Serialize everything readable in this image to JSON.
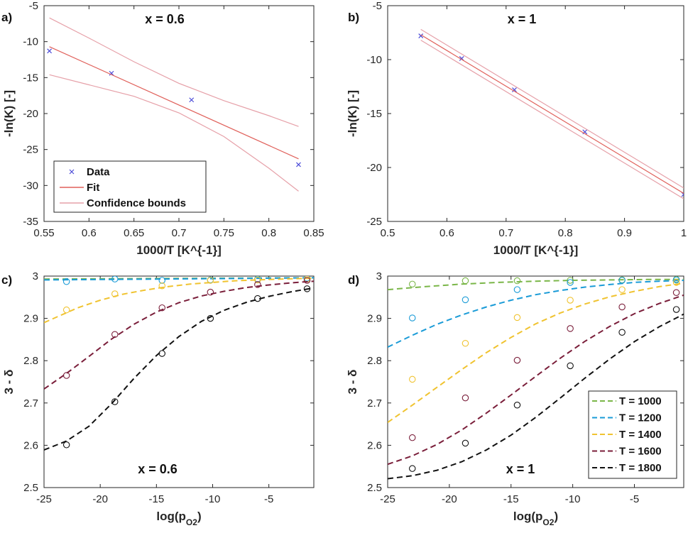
{
  "chart_data": [
    {
      "panel": "a)",
      "type": "line",
      "annotation": "x = 0.6",
      "xlabel": "1000/T [K^{-1}]",
      "ylabel": "-ln(K) [-]",
      "xlim": [
        0.55,
        0.85
      ],
      "ylim": [
        -35,
        -5
      ],
      "xticks": [
        0.55,
        0.6,
        0.65,
        0.7,
        0.75,
        0.8,
        0.85
      ],
      "xtick_labels": [
        "0.55",
        "0.6",
        "0.65",
        "0.7",
        "0.75",
        "0.8",
        "0.85"
      ],
      "yticks": [
        -35,
        -30,
        -25,
        -20,
        -15,
        -10,
        -5
      ],
      "ytick_labels": [
        "-35",
        "-30",
        "-25",
        "-20",
        "-15",
        "-10",
        "-5"
      ],
      "legend": [
        "Data",
        "Fit",
        "Confidence bounds"
      ],
      "series": [
        {
          "name": "Data",
          "kind": "marker",
          "color": "#4b4bd8",
          "x": [
            0.556,
            0.625,
            0.714,
            0.833
          ],
          "y": [
            -11.3,
            -14.4,
            -18.1,
            -27.1
          ]
        },
        {
          "name": "Fit",
          "kind": "line",
          "color": "#e0605a",
          "x": [
            0.556,
            0.833
          ],
          "y": [
            -10.7,
            -26.3
          ]
        },
        {
          "name": "Confidence bounds",
          "kind": "line",
          "color": "#e6a0a8",
          "x": [
            0.556,
            0.6,
            0.65,
            0.7,
            0.75,
            0.8,
            0.833
          ],
          "y": [
            -6.7,
            -9.5,
            -12.8,
            -15.8,
            -18.2,
            -20.3,
            -21.8
          ]
        },
        {
          "name": "Confidence bounds",
          "kind": "line",
          "color": "#e6a0a8",
          "x": [
            0.556,
            0.6,
            0.65,
            0.7,
            0.75,
            0.8,
            0.833
          ],
          "y": [
            -14.6,
            -16.0,
            -17.6,
            -19.9,
            -23.2,
            -27.6,
            -30.8
          ]
        }
      ]
    },
    {
      "panel": "b)",
      "type": "line",
      "annotation": "x = 1",
      "xlabel": "1000/T [K^{-1}]",
      "ylabel": "-ln(K) [-]",
      "xlim": [
        0.5,
        1
      ],
      "ylim": [
        -25,
        -5
      ],
      "xticks": [
        0.5,
        0.6,
        0.7,
        0.8,
        0.9,
        1
      ],
      "xtick_labels": [
        "0.5",
        "0.6",
        "0.7",
        "0.8",
        "0.9",
        "1"
      ],
      "yticks": [
        -25,
        -20,
        -15,
        -10,
        -5
      ],
      "ytick_labels": [
        "-25",
        "-20",
        "-15",
        "-10",
        "-5"
      ],
      "series": [
        {
          "name": "Data",
          "kind": "marker",
          "color": "#4b4bd8",
          "x": [
            0.556,
            0.625,
            0.714,
            0.833,
            1.0
          ],
          "y": [
            -7.8,
            -9.9,
            -12.8,
            -16.7,
            -22.5
          ]
        },
        {
          "name": "Fit",
          "kind": "line",
          "color": "#e0605a",
          "x": [
            0.556,
            1.0
          ],
          "y": [
            -7.7,
            -22.4
          ]
        },
        {
          "name": "Confidence bounds",
          "kind": "line",
          "color": "#e6a0a8",
          "x": [
            0.556,
            1.0
          ],
          "y": [
            -7.2,
            -21.9
          ]
        },
        {
          "name": "Confidence bounds",
          "kind": "line",
          "color": "#e6a0a8",
          "x": [
            0.556,
            1.0
          ],
          "y": [
            -8.2,
            -22.9
          ]
        }
      ]
    },
    {
      "panel": "c)",
      "type": "line",
      "annotation": "x = 0.6",
      "xlabel": "log(p",
      "xlabel_sub": "O2",
      "xlabel_end": ")",
      "ylabel": "3 - δ",
      "xlim": [
        -25,
        -1
      ],
      "ylim": [
        2.5,
        3.0
      ],
      "xticks": [
        -25,
        -20,
        -15,
        -10,
        -5
      ],
      "xtick_labels": [
        "-25",
        "-20",
        "-15",
        "-10",
        "-5"
      ],
      "yticks": [
        2.5,
        2.6,
        2.7,
        2.8,
        2.9,
        3.0
      ],
      "ytick_labels": [
        "2.5",
        "2.6",
        "2.7",
        "2.8",
        "2.9",
        "3"
      ],
      "series": [
        {
          "name": "T = 1000",
          "color": "#7ab648",
          "x": [
            -25,
            -1
          ],
          "y": [
            2.993,
            2.996
          ],
          "points_x": [],
          "points_y": []
        },
        {
          "name": "T = 1200",
          "color": "#1a9bd7",
          "x": [
            -25,
            -20,
            -15,
            -10,
            -5,
            -1
          ],
          "y": [
            2.991,
            2.992,
            2.993,
            2.994,
            2.995,
            2.996
          ],
          "points_x": [
            -23,
            -18.7,
            -14.5,
            -10.2,
            -6,
            -1.6
          ],
          "points_y": [
            2.987,
            2.993,
            2.99,
            2.991,
            2.993,
            2.995
          ]
        },
        {
          "name": "T = 1400",
          "color": "#f0c330",
          "x": [
            -25,
            -22,
            -20,
            -18,
            -16,
            -14,
            -12,
            -10,
            -8,
            -6,
            -4,
            -1
          ],
          "y": [
            2.89,
            2.925,
            2.943,
            2.957,
            2.967,
            2.975,
            2.981,
            2.985,
            2.989,
            2.991,
            2.993,
            2.995
          ],
          "points_x": [
            -23,
            -18.7,
            -14.5,
            -10.2,
            -6,
            -1.6
          ],
          "points_y": [
            2.92,
            2.958,
            2.977,
            2.99,
            2.991,
            2.993
          ]
        },
        {
          "name": "T = 1600",
          "color": "#7a1e3a",
          "x": [
            -25,
            -23,
            -21,
            -19,
            -17,
            -15,
            -13,
            -11,
            -9,
            -7,
            -5,
            -3,
            -1
          ],
          "y": [
            2.733,
            2.77,
            2.81,
            2.851,
            2.886,
            2.915,
            2.937,
            2.953,
            2.964,
            2.973,
            2.979,
            2.984,
            2.988
          ],
          "points_x": [
            -23,
            -18.7,
            -14.5,
            -10.2,
            -6,
            -1.6
          ],
          "points_y": [
            2.765,
            2.862,
            2.925,
            2.962,
            2.98,
            2.99
          ]
        },
        {
          "name": "T = 1800",
          "color": "#111111",
          "x": [
            -25,
            -23,
            -21,
            -19,
            -17,
            -15,
            -13,
            -11,
            -9,
            -7,
            -5,
            -3,
            -1
          ],
          "y": [
            2.589,
            2.61,
            2.645,
            2.698,
            2.758,
            2.812,
            2.857,
            2.893,
            2.919,
            2.938,
            2.952,
            2.963,
            2.972
          ],
          "points_x": [
            -23,
            -18.7,
            -14.5,
            -10.2,
            -6,
            -1.6
          ],
          "points_y": [
            2.601,
            2.703,
            2.817,
            2.9,
            2.947,
            2.97
          ]
        }
      ]
    },
    {
      "panel": "d)",
      "type": "line",
      "annotation": "x = 1",
      "xlabel": "log(p",
      "xlabel_sub": "O2",
      "xlabel_end": ")",
      "ylabel": "3 - δ",
      "xlim": [
        -25,
        -1
      ],
      "ylim": [
        2.5,
        3.0
      ],
      "xticks": [
        -25,
        -20,
        -15,
        -10,
        -5
      ],
      "xtick_labels": [
        "-25",
        "-20",
        "-15",
        "-10",
        "-5"
      ],
      "yticks": [
        2.5,
        2.6,
        2.7,
        2.8,
        2.9,
        3.0
      ],
      "ytick_labels": [
        "2.5",
        "2.6",
        "2.7",
        "2.8",
        "2.9",
        "3"
      ],
      "legend": [
        "T = 1000",
        "T = 1200",
        "T = 1400",
        "T = 1600",
        "T = 1800"
      ],
      "series": [
        {
          "name": "T = 1000",
          "color": "#7ab648",
          "x": [
            -25,
            -22,
            -19,
            -16,
            -13,
            -10,
            -7,
            -4,
            -1
          ],
          "y": [
            2.968,
            2.975,
            2.981,
            2.985,
            2.988,
            2.99,
            2.991,
            2.992,
            2.992
          ],
          "points_x": [
            -23,
            -18.7,
            -14.5,
            -10.2,
            -6,
            -1.6
          ],
          "points_y": [
            2.981,
            2.989,
            2.989,
            2.99,
            2.991,
            2.992
          ]
        },
        {
          "name": "T = 1200",
          "color": "#1a9bd7",
          "x": [
            -25,
            -23,
            -21,
            -19,
            -17,
            -15,
            -13,
            -11,
            -9,
            -7,
            -5,
            -3,
            -1
          ],
          "y": [
            2.832,
            2.86,
            2.886,
            2.908,
            2.927,
            2.943,
            2.956,
            2.966,
            2.974,
            2.98,
            2.985,
            2.988,
            2.99
          ],
          "points_x": [
            -23,
            -18.7,
            -14.5,
            -10.2,
            -6,
            -1.6
          ],
          "points_y": [
            2.901,
            2.944,
            2.968,
            2.985,
            2.99,
            2.991
          ]
        },
        {
          "name": "T = 1400",
          "color": "#f0c330",
          "x": [
            -25,
            -23,
            -21,
            -19,
            -17,
            -15,
            -13,
            -11,
            -9,
            -7,
            -5,
            -3,
            -1
          ],
          "y": [
            2.654,
            2.695,
            2.737,
            2.779,
            2.819,
            2.855,
            2.887,
            2.913,
            2.934,
            2.951,
            2.964,
            2.975,
            2.983
          ],
          "points_x": [
            -23,
            -18.7,
            -14.5,
            -10.2,
            -6,
            -1.6
          ],
          "points_y": [
            2.756,
            2.841,
            2.902,
            2.943,
            2.968,
            2.985
          ]
        },
        {
          "name": "T = 1600",
          "color": "#7a1e3a",
          "x": [
            -25,
            -23,
            -21,
            -19,
            -17,
            -15,
            -13,
            -11,
            -9,
            -7,
            -5,
            -3,
            -1
          ],
          "y": [
            2.555,
            2.575,
            2.602,
            2.636,
            2.676,
            2.719,
            2.763,
            2.806,
            2.846,
            2.881,
            2.911,
            2.935,
            2.955
          ],
          "points_x": [
            -23,
            -18.7,
            -14.5,
            -10.2,
            -6,
            -1.6
          ],
          "points_y": [
            2.618,
            2.712,
            2.801,
            2.876,
            2.927,
            2.961
          ]
        },
        {
          "name": "T = 1800",
          "color": "#111111",
          "x": [
            -25,
            -23,
            -21,
            -19,
            -17,
            -15,
            -13,
            -11,
            -9,
            -7,
            -5,
            -3,
            -1
          ],
          "y": [
            2.521,
            2.528,
            2.541,
            2.561,
            2.589,
            2.624,
            2.666,
            2.712,
            2.759,
            2.804,
            2.845,
            2.88,
            2.91
          ],
          "points_x": [
            -23,
            -18.7,
            -14.5,
            -10.2,
            -6,
            -1.6
          ],
          "points_y": [
            2.545,
            2.605,
            2.695,
            2.788,
            2.867,
            2.921
          ]
        }
      ]
    }
  ]
}
